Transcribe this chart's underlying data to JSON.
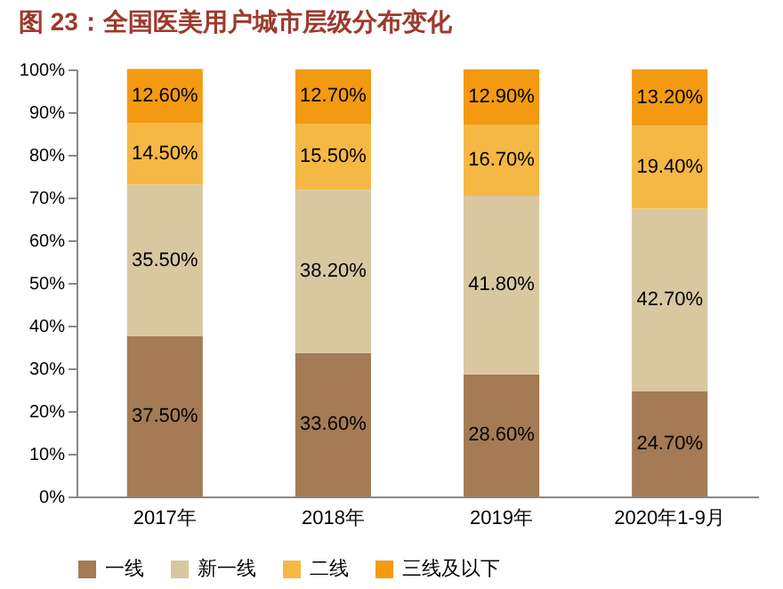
{
  "chart_data": {
    "type": "bar",
    "stacked": true,
    "title": "图 23：全国医美用户城市层级分布变化",
    "categories": [
      "2017年",
      "2018年",
      "2019年",
      "2020年1-9月"
    ],
    "series": [
      {
        "name": "一线",
        "color": "#a47b55",
        "values": [
          37.5,
          33.6,
          28.6,
          24.7
        ],
        "value_labels": [
          "37.50%",
          "33.60%",
          "28.60%",
          "24.70%"
        ]
      },
      {
        "name": "新一线",
        "color": "#d9c7a0",
        "values": [
          35.5,
          38.2,
          41.8,
          42.7
        ],
        "value_labels": [
          "35.50%",
          "38.20%",
          "41.80%",
          "42.70%"
        ]
      },
      {
        "name": "二线",
        "color": "#f6b844",
        "values": [
          14.5,
          15.5,
          16.7,
          19.4
        ],
        "value_labels": [
          "14.50%",
          "15.50%",
          "16.70%",
          "19.40%"
        ]
      },
      {
        "name": "三线及以下",
        "color": "#f39a12",
        "values": [
          12.6,
          12.7,
          12.9,
          13.2
        ],
        "value_labels": [
          "12.60%",
          "12.70%",
          "12.90%",
          "13.20%"
        ]
      }
    ],
    "ylim": [
      0,
      100
    ],
    "yticks": [
      {
        "value": 0,
        "label": "0%"
      },
      {
        "value": 10,
        "label": "10%"
      },
      {
        "value": 20,
        "label": "20%"
      },
      {
        "value": 30,
        "label": "30%"
      },
      {
        "value": 40,
        "label": "40%"
      },
      {
        "value": 50,
        "label": "50%"
      },
      {
        "value": 60,
        "label": "60%"
      },
      {
        "value": 70,
        "label": "70%"
      },
      {
        "value": 80,
        "label": "80%"
      },
      {
        "value": 90,
        "label": "90%"
      },
      {
        "value": 100,
        "label": "100%"
      }
    ],
    "grid": false,
    "legend": "bottom"
  }
}
